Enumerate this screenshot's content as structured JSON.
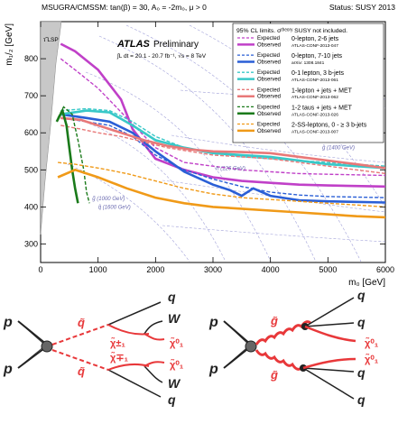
{
  "header": {
    "model": "MSUGRA/CMSSM: tan(β) = 30, A₀ = -2m₀, μ > 0",
    "status": "Status: SUSY 2013"
  },
  "atlas": {
    "brand": "ATLAS",
    "tag": "Preliminary",
    "lumi": "∫L dt = 20.1 - 20.7 fb⁻¹, √s = 8 TeV"
  },
  "colors": {
    "zero_lepton_2_6": "#c040c8",
    "zero_lepton_7_10": "#2a5fd6",
    "zero_one_lepton_3b": "#38c8c8",
    "one_lepton": "#e87878",
    "one_two_taus": "#1a7a1a",
    "two_ss_leptons": "#f09a18",
    "lsp_region": "#c8c8c8",
    "contour": "#8a8ad0"
  },
  "legend": {
    "header": "95% CL limits. σᵗʰᵉᵒʳʸ SUSY not included.",
    "expected_label": "Expected",
    "observed_label": "Observed",
    "entries": [
      {
        "key": "zero_lepton_2_6",
        "title": "0-lepton, 2-6 jets",
        "ref": "ATLAS-CONF-2013-047"
      },
      {
        "key": "zero_lepton_7_10",
        "title": "0-lepton, 7-10 jets",
        "ref": "arXiv: 1308.1841"
      },
      {
        "key": "zero_one_lepton_3b",
        "title": "0-1 lepton, 3 b-jets",
        "ref": "ATLAS-CONF-2013-061"
      },
      {
        "key": "one_lepton",
        "title": "1-lepton + jets + MET",
        "ref": "ATLAS-CONF-2013-062"
      },
      {
        "key": "one_two_taus",
        "title": "1-2 taus + jets + MET",
        "ref": "ATLAS-CONF-2013-026"
      },
      {
        "key": "two_ss_leptons",
        "title": "2-SS-leptons, 0 - ≥ 3 b-jets",
        "ref": "ATLAS-CONF-2013-007"
      }
    ]
  },
  "chart_data": {
    "type": "line",
    "xlabel": "m₀ [GeV]",
    "ylabel": "m₁/₂ [GeV]",
    "xlim": [
      0,
      6000
    ],
    "ylim": [
      250,
      900
    ],
    "xticks": [
      0,
      1000,
      2000,
      3000,
      4000,
      5000,
      6000
    ],
    "yticks": [
      300,
      400,
      500,
      600,
      700,
      800
    ],
    "annotations": [
      {
        "text": "g̃ (1400 GeV)",
        "x": 4900,
        "y": 555
      },
      {
        "text": "q̃ (1600 GeV)",
        "x": 1000,
        "y": 395
      },
      {
        "text": "g̃ (1000 GeV)",
        "x": 900,
        "y": 418
      },
      {
        "text": "h (126 GeV)",
        "x": 3050,
        "y": 500
      },
      {
        "text": "τ̃ LSP",
        "x": 200,
        "y": 815
      }
    ],
    "series": [
      {
        "key": "zero_lepton_2_6",
        "kind": "expected",
        "x": [
          350,
          600,
          1000,
          1500,
          2000,
          2500,
          3000,
          3500,
          4000,
          4500,
          5000,
          6000
        ],
        "y": [
          800,
          770,
          720,
          640,
          560,
          520,
          510,
          500,
          495,
          490,
          488,
          485
        ]
      },
      {
        "key": "zero_lepton_2_6",
        "kind": "observed",
        "x": [
          350,
          600,
          1000,
          1400,
          1600,
          2000,
          2500,
          3000,
          3500,
          4000,
          4500,
          5000,
          6000
        ],
        "y": [
          840,
          820,
          770,
          690,
          610,
          530,
          500,
          480,
          470,
          465,
          460,
          458,
          455
        ]
      },
      {
        "key": "zero_lepton_7_10",
        "kind": "expected",
        "x": [
          350,
          800,
          1200,
          1600,
          2000,
          2500,
          3000,
          3500,
          4000,
          4500,
          5000,
          6000
        ],
        "y": [
          640,
          630,
          620,
          590,
          540,
          500,
          475,
          455,
          440,
          432,
          428,
          425
        ]
      },
      {
        "key": "zero_lepton_7_10",
        "kind": "observed",
        "x": [
          350,
          800,
          1200,
          1600,
          2000,
          2500,
          3000,
          3300,
          3500,
          3700,
          4000,
          4500,
          5000,
          6000
        ],
        "y": [
          650,
          640,
          630,
          600,
          550,
          495,
          460,
          445,
          430,
          450,
          430,
          418,
          415,
          412
        ]
      },
      {
        "key": "zero_one_lepton_3b",
        "kind": "expected",
        "x": [
          350,
          800,
          1200,
          1600,
          2000,
          2500,
          3000,
          3500,
          4000,
          4500,
          5000,
          6000
        ],
        "y": [
          660,
          665,
          660,
          630,
          590,
          560,
          545,
          535,
          530,
          525,
          520,
          510
        ]
      },
      {
        "key": "zero_one_lepton_3b",
        "kind": "observed",
        "x": [
          350,
          800,
          1200,
          1600,
          2000,
          2500,
          3000,
          3500,
          4000,
          4500,
          5000,
          6000
        ],
        "y": [
          650,
          660,
          655,
          620,
          580,
          560,
          545,
          540,
          535,
          525,
          515,
          505
        ]
      },
      {
        "key": "one_lepton",
        "kind": "expected",
        "x": [
          350,
          700,
          1000,
          1400,
          1800,
          2200,
          2600,
          3000,
          3500,
          4000,
          4500,
          5000,
          5500,
          6000
        ],
        "y": [
          620,
          610,
          600,
          590,
          575,
          560,
          550,
          540,
          535,
          530,
          520,
          510,
          500,
          490
        ]
      },
      {
        "key": "one_lepton",
        "kind": "observed",
        "x": [
          350,
          700,
          1000,
          1400,
          1800,
          2200,
          2600,
          3000,
          3500,
          4000,
          4500,
          5000,
          5500,
          6000
        ],
        "y": [
          640,
          635,
          620,
          600,
          580,
          565,
          555,
          550,
          548,
          545,
          535,
          525,
          515,
          505
        ]
      },
      {
        "key": "one_two_taus",
        "kind": "expected",
        "x": [
          300,
          400,
          550,
          650,
          750,
          800,
          850
        ],
        "y": [
          640,
          670,
          650,
          580,
          500,
          440,
          410
        ]
      },
      {
        "key": "one_two_taus",
        "kind": "observed",
        "x": [
          280,
          380,
          450,
          500,
          550,
          600,
          650
        ],
        "y": [
          630,
          660,
          620,
          560,
          500,
          450,
          410
        ]
      },
      {
        "key": "two_ss_leptons",
        "kind": "expected",
        "x": [
          300,
          600,
          1000,
          1500,
          2000,
          2500,
          3000,
          3500,
          4000,
          4500,
          5000,
          5500,
          6000
        ],
        "y": [
          520,
          515,
          505,
          490,
          470,
          450,
          435,
          425,
          420,
          415,
          410,
          405,
          400
        ]
      },
      {
        "key": "two_ss_leptons",
        "kind": "observed",
        "x": [
          300,
          600,
          1000,
          1500,
          2000,
          2500,
          3000,
          3500,
          4000,
          4500,
          5000,
          5500,
          6000
        ],
        "y": [
          480,
          500,
          480,
          450,
          425,
          410,
          400,
          395,
          390,
          385,
          380,
          375,
          372
        ]
      }
    ]
  },
  "diagrams": {
    "left": {
      "p_top": "p",
      "p_bottom": "p",
      "squark_top": "q̃",
      "squark_bottom": "q̃",
      "q_top": "q",
      "q_bottom": "q",
      "w_top": "W",
      "w_bottom": "W",
      "chargino_top": "χ̃±₁",
      "chargino_bottom": "χ̃∓₁",
      "neutralino_top": "χ̃⁰₁",
      "neutralino_bottom": "χ̃⁰₁"
    },
    "right": {
      "p_top": "p",
      "p_bottom": "p",
      "gluino_top": "g̃",
      "gluino_bottom": "g̃",
      "q_1": "q",
      "q_2": "q",
      "q_3": "q",
      "q_4": "q",
      "neutralino_top": "χ̃⁰₁",
      "neutralino_bottom": "χ̃⁰₁"
    }
  }
}
